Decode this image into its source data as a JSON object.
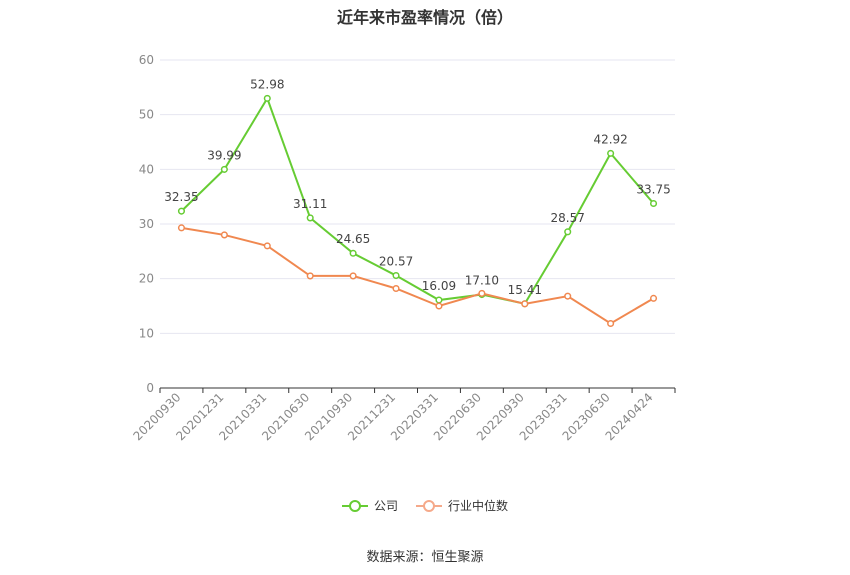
{
  "title": "近年来市盈率情况（倍）",
  "source": "数据来源：恒生聚源",
  "colors": {
    "company": "#66cc33",
    "industry": "#f08850",
    "grid": "#e6e6f0",
    "axis": "#333333"
  },
  "legend": [
    {
      "label": "公司",
      "color": "#66cc33"
    },
    {
      "label": "行业中位数",
      "color": "#f5a98a"
    }
  ],
  "chart_data": {
    "type": "line",
    "categories": [
      "20200930",
      "20201231",
      "20210331",
      "20210630",
      "20210930",
      "20211231",
      "20220331",
      "20220630",
      "20220930",
      "20230331",
      "20230630",
      "20240424"
    ],
    "ylim": [
      0,
      60
    ],
    "yticks": [
      0,
      10,
      20,
      30,
      40,
      50,
      60
    ],
    "series": [
      {
        "name": "公司",
        "values": [
          32.35,
          39.99,
          52.98,
          31.11,
          24.65,
          20.57,
          16.09,
          17.1,
          15.41,
          28.57,
          42.92,
          33.75
        ],
        "labels": [
          "32.35",
          "39.99",
          "52.98",
          "31.11",
          "24.65",
          "20.57",
          "16.09",
          "17.10",
          "15.41",
          "28.57",
          "42.92",
          "33.75"
        ]
      },
      {
        "name": "行业中位数",
        "values": [
          29.3,
          28.0,
          26.0,
          20.5,
          20.5,
          18.2,
          15.0,
          17.3,
          15.4,
          16.8,
          11.8,
          16.4
        ]
      }
    ]
  }
}
